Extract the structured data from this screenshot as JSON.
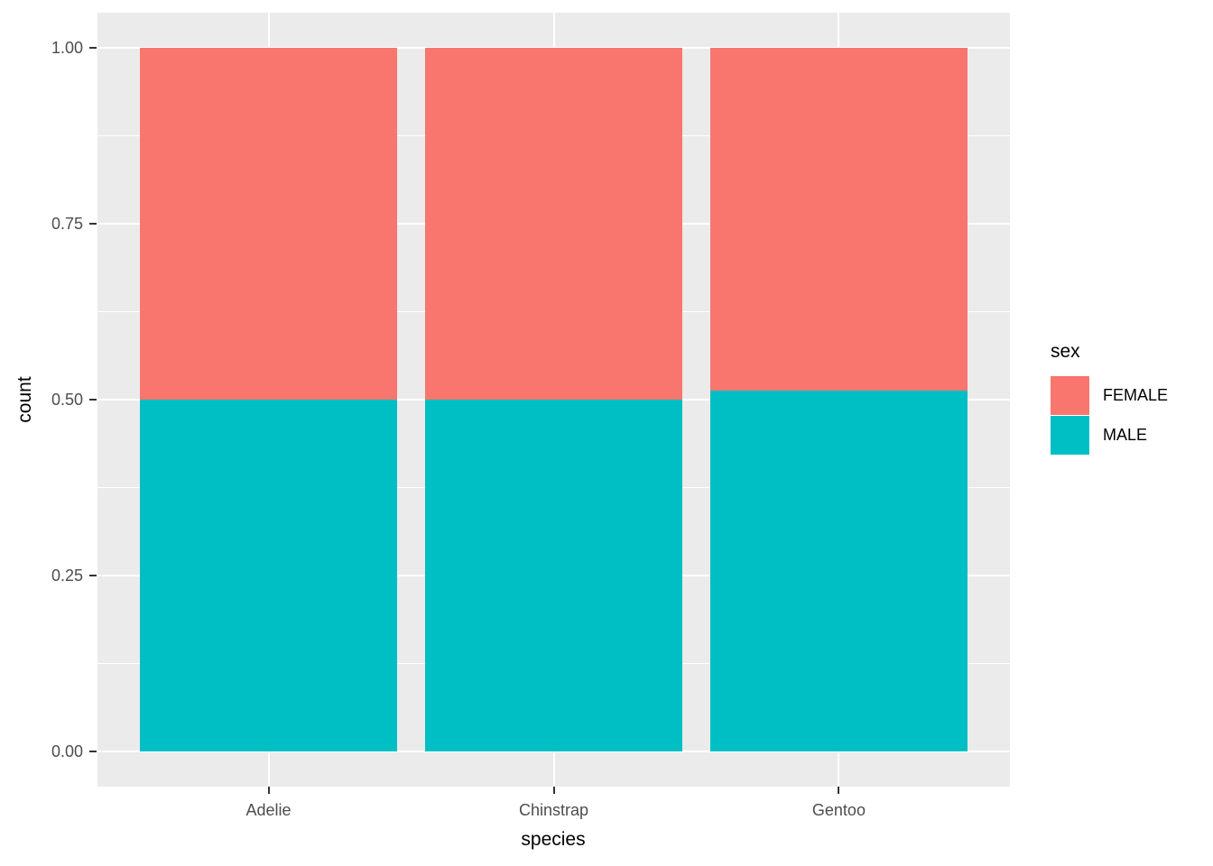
{
  "chart_data": {
    "type": "bar",
    "subtype": "stacked-fill-proportion",
    "title": "",
    "xlabel": "species",
    "ylabel": "count",
    "categories": [
      "Adelie",
      "Chinstrap",
      "Gentoo"
    ],
    "series": [
      {
        "name": "FEMALE",
        "color": "#F8766D",
        "values": [
          0.5,
          0.5,
          0.487
        ]
      },
      {
        "name": "MALE",
        "color": "#00BFC4",
        "values": [
          0.5,
          0.5,
          0.513
        ]
      }
    ],
    "stack_order_top_to_bottom": [
      "FEMALE",
      "MALE"
    ],
    "ylim": [
      0,
      1
    ],
    "y_tick_values": [
      0,
      0.25,
      0.5,
      0.75,
      1
    ],
    "y_tick_labels": [
      "0.00",
      "0.25",
      "0.50",
      "0.75",
      "1.00"
    ],
    "y_minor_tick_values": [
      0.125,
      0.375,
      0.625,
      0.875
    ],
    "bar_width_fraction": 0.9,
    "grid": true,
    "legend": {
      "title": "sex",
      "position": "right"
    },
    "colors": {
      "panel_background": "#EBEBEB",
      "gridline": "#FFFFFF",
      "tick_label": "#4D4D4D",
      "tick_mark": "#333333",
      "axis_title": "#000000"
    }
  }
}
